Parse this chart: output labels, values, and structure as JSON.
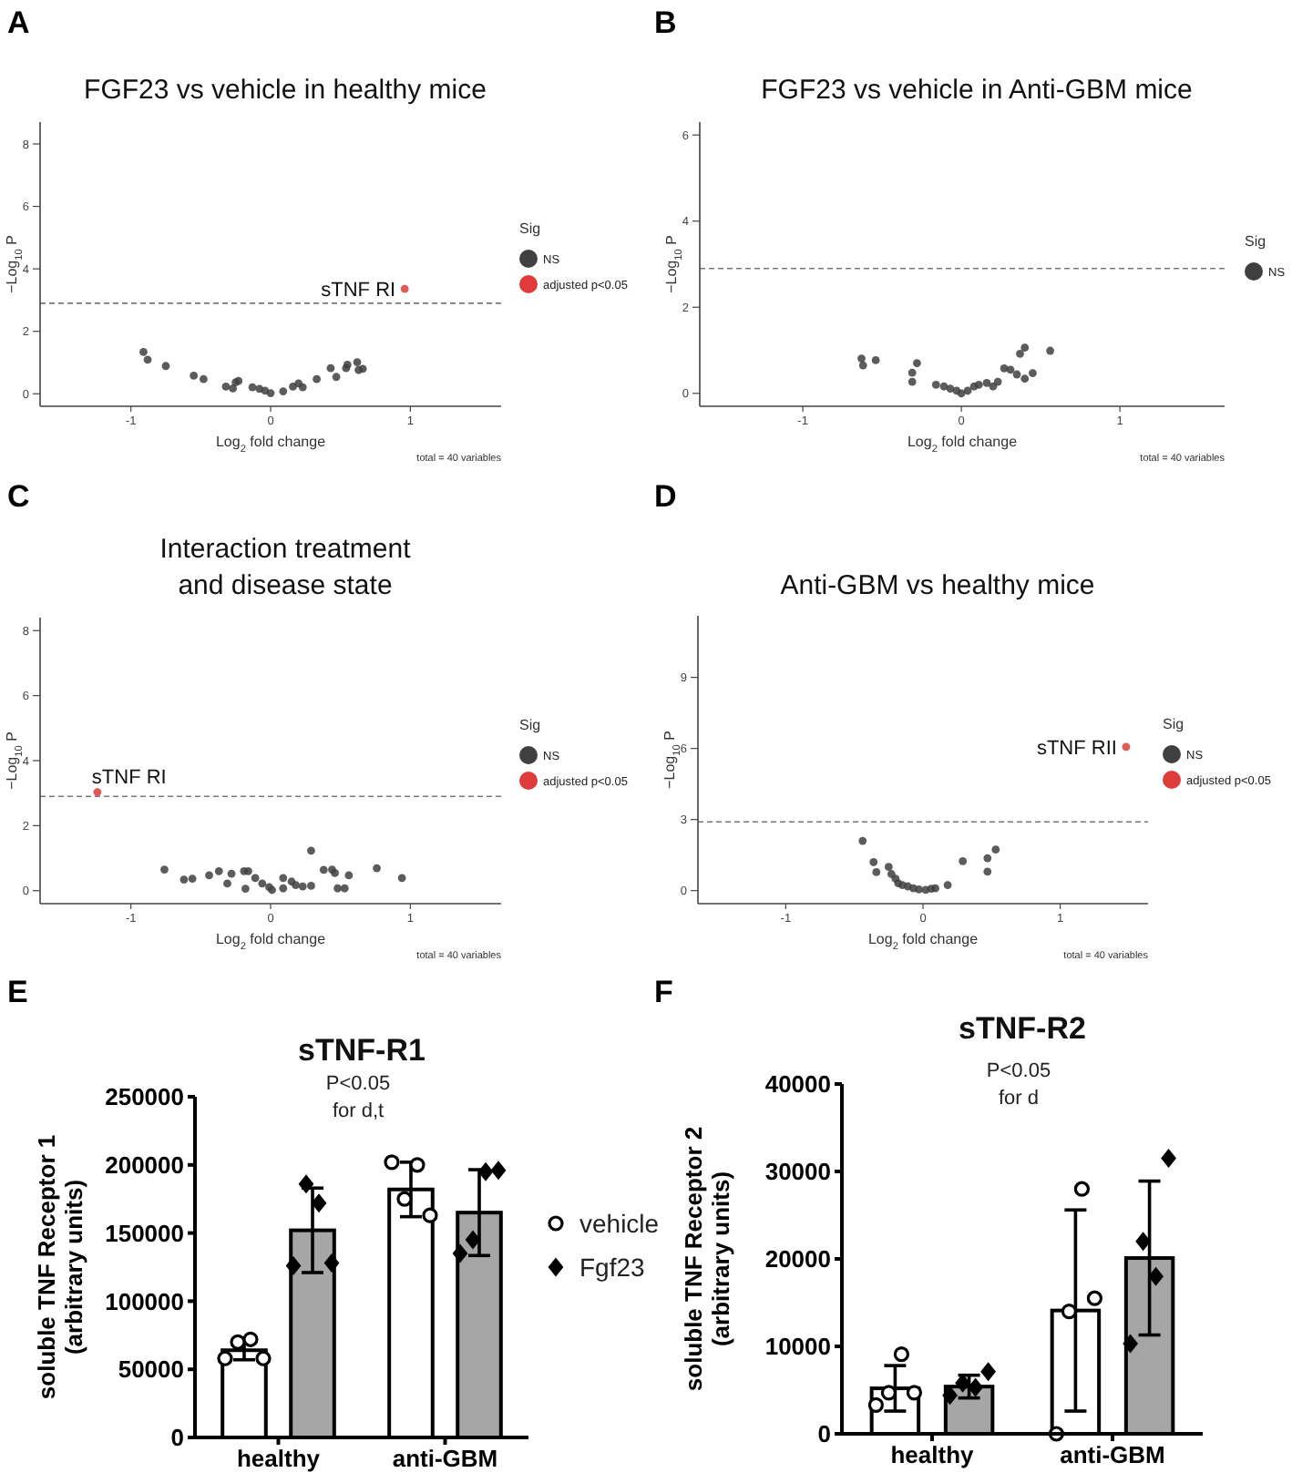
{
  "chart_data": [
    {
      "type": "scatter",
      "title": "FGF23 vs vehicle in healthy mice",
      "xlabel": "Log$_{2}$ fold change",
      "ylabel": "−Log$_{10}$ P",
      "legend_title": "Sig",
      "legend": "right",
      "marker": "circle",
      "xlim": [
        -1.65,
        1.65
      ],
      "ylim": [
        -0.4,
        8.7
      ],
      "xticks": [
        -1,
        0,
        1
      ],
      "yticks": [
        0,
        2,
        4,
        6,
        8
      ],
      "ref_lines": [
        {
          "axis": "y",
          "value": 2.9,
          "line_style": "dashed"
        }
      ],
      "annotations": [
        "A",
        "total = 40 variables",
        {
          "text": "sTNF RI",
          "x": 0.96,
          "y": 3.36
        }
      ],
      "series": [
        {
          "name": "NS",
          "color": "#404040",
          "x": [
            -0.91,
            -0.88,
            -0.75,
            -0.55,
            -0.48,
            -0.32,
            -0.27,
            -0.25,
            -0.23,
            -0.13,
            -0.08,
            -0.04,
            0,
            0.09,
            0.16,
            0.2,
            0.23,
            0.33,
            0.43,
            0.47,
            0.54,
            0.55,
            0.62,
            0.63,
            0.66
          ],
          "values": [
            1.34,
            1.09,
            0.89,
            0.58,
            0.47,
            0.23,
            0.17,
            0.37,
            0.41,
            0.21,
            0.16,
            0.1,
            0.02,
            0.08,
            0.23,
            0.33,
            0.21,
            0.47,
            0.82,
            0.54,
            0.82,
            0.93,
            1.01,
            0.76,
            0.8
          ]
        },
        {
          "name": "adjusted p<0.05",
          "color": "#e03b3b",
          "x": [
            0.96
          ],
          "values": [
            3.36
          ]
        }
      ]
    },
    {
      "type": "scatter",
      "title": "FGF23 vs vehicle in Anti-GBM mice",
      "xlabel": "Log$_{2}$ fold change",
      "ylabel": "−Log$_{10}$ P",
      "legend_title": "Sig",
      "legend": "right",
      "marker": "circle",
      "xlim": [
        -1.65,
        1.66
      ],
      "ylim": [
        -0.3,
        6.3
      ],
      "xticks": [
        -1,
        0,
        1
      ],
      "yticks": [
        0,
        2,
        4,
        6
      ],
      "ref_lines": [
        {
          "axis": "y",
          "value": 2.9,
          "line_style": "dashed"
        }
      ],
      "annotations": [
        "B",
        "total = 40 variables"
      ],
      "series": [
        {
          "name": "NS",
          "color": "#404040",
          "x": [
            -0.63,
            -0.62,
            -0.54,
            -0.31,
            -0.31,
            -0.28,
            -0.16,
            -0.11,
            -0.07,
            -0.03,
            0,
            0.04,
            0.08,
            0.11,
            0.16,
            0.2,
            0.23,
            0.27,
            0.31,
            0.35,
            0.37,
            0.4,
            0.4,
            0.45,
            0.56
          ],
          "values": [
            0.81,
            0.65,
            0.77,
            0.48,
            0.27,
            0.7,
            0.2,
            0.16,
            0.11,
            0.06,
            0,
            0.06,
            0.16,
            0.2,
            0.24,
            0.16,
            0.27,
            0.58,
            0.55,
            0.44,
            0.92,
            1.06,
            0.34,
            0.47,
            0.99
          ]
        }
      ]
    },
    {
      "type": "scatter",
      "title": "Interaction treatment\nand disease state",
      "xlabel": "Log$_{2}$ fold change",
      "ylabel": "−Log$_{10}$ P",
      "legend_title": "Sig",
      "legend": "right",
      "marker": "circle",
      "xlim": [
        -1.65,
        1.65
      ],
      "ylim": [
        -0.4,
        8.4
      ],
      "xticks": [
        -1,
        0,
        1
      ],
      "yticks": [
        0,
        2,
        4,
        6,
        8
      ],
      "ref_lines": [
        {
          "axis": "y",
          "value": 2.9,
          "line_style": "dashed"
        }
      ],
      "annotations": [
        "C",
        "total = 40 variables",
        {
          "text": "sTNF RI",
          "x": -1.24,
          "y": 3.03
        }
      ],
      "series": [
        {
          "name": "NS",
          "color": "#404040",
          "x": [
            -0.76,
            -0.62,
            -0.56,
            -0.44,
            -0.37,
            -0.31,
            -0.28,
            -0.19,
            -0.18,
            -0.16,
            -0.11,
            -0.06,
            -0.01,
            0.01,
            0.09,
            0.09,
            0.15,
            0.18,
            0.23,
            0.29,
            0.29,
            0.38,
            0.44,
            0.46,
            0.48,
            0.53,
            0.56,
            0.76,
            0.94
          ],
          "values": [
            0.65,
            0.34,
            0.37,
            0.47,
            0.6,
            0.22,
            0.52,
            0.6,
            0.06,
            0.6,
            0.39,
            0.22,
            0.11,
            0.02,
            0.39,
            0.07,
            0.28,
            0.17,
            0.13,
            1.23,
            0.15,
            0.64,
            0.65,
            0.54,
            0.07,
            0.07,
            0.47,
            0.69,
            0.39
          ]
        },
        {
          "name": "adjusted p<0.05",
          "color": "#e03b3b",
          "x": [
            -1.24
          ],
          "values": [
            3.03
          ]
        }
      ]
    },
    {
      "type": "scatter",
      "title": "Anti-GBM vs healthy mice",
      "xlabel": "Log$_{2}$ fold change",
      "ylabel": "−Log$_{10}$ P",
      "legend_title": "Sig",
      "legend": "right",
      "marker": "circle",
      "xlim": [
        -1.64,
        1.64
      ],
      "ylim": [
        -0.55,
        11.6
      ],
      "xticks": [
        -1,
        0,
        1
      ],
      "yticks": [
        0,
        3,
        6,
        9
      ],
      "ref_lines": [
        {
          "axis": "y",
          "value": 2.9,
          "line_style": "dashed"
        }
      ],
      "annotations": [
        "D",
        "total = 40 variables",
        {
          "text": "sTNF RII",
          "x": 1.48,
          "y": 6.07
        }
      ],
      "series": [
        {
          "name": "NS",
          "color": "#404040",
          "x": [
            -0.44,
            -0.36,
            -0.34,
            -0.25,
            -0.23,
            -0.2,
            -0.18,
            -0.15,
            -0.11,
            -0.07,
            -0.03,
            0.02,
            0.06,
            0.09,
            0.18,
            0.29,
            0.47,
            0.47,
            0.53
          ],
          "values": [
            2.1,
            1.2,
            0.78,
            1.0,
            0.7,
            0.5,
            0.31,
            0.23,
            0.18,
            0.1,
            0.05,
            0.03,
            0.08,
            0.1,
            0.23,
            1.24,
            0.8,
            1.37,
            1.73
          ]
        },
        {
          "name": "adjusted p<0.05",
          "color": "#e03b3b",
          "x": [
            1.48
          ],
          "values": [
            6.07
          ]
        }
      ]
    },
    {
      "type": "bar",
      "title": "sTNF-R1",
      "ylabel": "soluble TNF Receptor 1 (arbitrary units)",
      "categories": [
        "healthy",
        "anti-GBM"
      ],
      "ylim": [
        0,
        250000
      ],
      "yticks": [
        0,
        50000,
        100000,
        150000,
        200000,
        250000
      ],
      "legend": "right",
      "annotations": [
        "E",
        "P<0.05",
        "for d,t"
      ],
      "series": [
        {
          "color": "#ffffff",
          "values": [
            64000,
            182000
          ],
          "errors": [
            7000,
            20000
          ]
        },
        {
          "color": "#a6a6a6",
          "values": [
            152000,
            165000
          ],
          "errors": [
            31000,
            31500
          ]
        },
        {
          "type": "scatter",
          "name": "vehicle",
          "marker": "circle",
          "color": "#000000",
          "x": [
            "healthy",
            "healthy",
            "healthy",
            "healthy",
            "anti-GBM",
            "anti-GBM",
            "anti-GBM",
            "anti-GBM"
          ],
          "values": [
            58000,
            70000,
            72000,
            58000,
            202000,
            175000,
            200000,
            163000
          ]
        },
        {
          "type": "scatter",
          "name": "Fgf23",
          "marker": "diamond",
          "color": "#000000",
          "x": [
            "healthy",
            "healthy",
            "healthy",
            "healthy",
            "anti-GBM",
            "anti-GBM",
            "anti-GBM",
            "anti-GBM"
          ],
          "values": [
            126000,
            186000,
            172000,
            128000,
            135000,
            145000,
            195000,
            196000
          ]
        }
      ]
    },
    {
      "type": "bar",
      "title": "sTNF-R2",
      "ylabel": "soluble TNF Receptor 2 (arbitrary units)",
      "categories": [
        "healthy",
        "anti-GBM"
      ],
      "ylim": [
        0,
        40000
      ],
      "yticks": [
        0,
        10000,
        20000,
        30000,
        40000
      ],
      "annotations": [
        "F",
        "P<0.05",
        "for d"
      ],
      "series": [
        {
          "color": "#ffffff",
          "values": [
            5200,
            14100
          ],
          "errors": [
            2600,
            11500
          ]
        },
        {
          "color": "#a6a6a6",
          "values": [
            5400,
            20100
          ],
          "errors": [
            1300,
            8800
          ]
        },
        {
          "type": "scatter",
          "marker": "circle",
          "color": "#000000",
          "x": [
            "healthy",
            "healthy",
            "healthy",
            "healthy",
            "anti-GBM",
            "anti-GBM",
            "anti-GBM",
            "anti-GBM"
          ],
          "values": [
            3300,
            4700,
            9100,
            4700,
            0,
            14000,
            28000,
            15500
          ]
        },
        {
          "type": "scatter",
          "marker": "diamond",
          "color": "#000000",
          "x": [
            "healthy",
            "healthy",
            "healthy",
            "healthy",
            "anti-GBM",
            "anti-GBM",
            "anti-GBM",
            "anti-GBM"
          ],
          "values": [
            4400,
            5800,
            5300,
            7100,
            10300,
            22000,
            18000,
            31500
          ]
        }
      ]
    }
  ]
}
